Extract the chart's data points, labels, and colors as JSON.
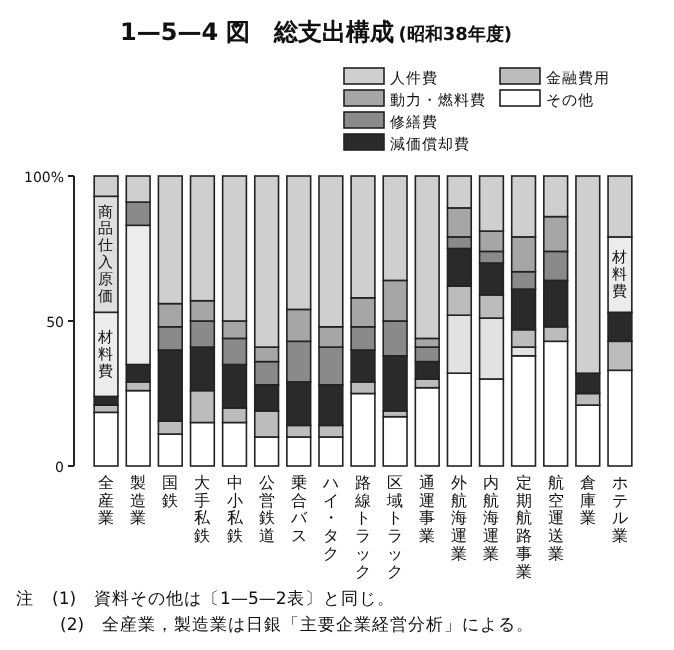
{
  "chart_data": {
    "type": "bar",
    "title": "1—5—4 図　総支出構成",
    "subtitle": "(昭和38年度)",
    "categories": [
      "全産業",
      "製造業",
      "国鉄",
      "大手私鉄",
      "中小私鉄",
      "公営鉄道",
      "乗合バス",
      "ハイ・タク",
      "路線トラック",
      "区域トラック",
      "通運事業",
      "外航海運業",
      "内航海運業",
      "定期航路事業",
      "航空運送業",
      "倉庫業",
      "ホテル業"
    ],
    "stacked": true,
    "series": [
      {
        "name": "その他",
        "color": "#ffffff",
        "values": [
          18.5,
          26,
          11,
          15,
          15,
          10,
          10,
          10,
          25,
          17,
          27,
          32,
          30,
          38,
          43,
          21,
          33
        ]
      },
      {
        "color": "#e2e2e2",
        "values": [
          null,
          null,
          null,
          null,
          null,
          null,
          null,
          null,
          null,
          null,
          null,
          20,
          21,
          3,
          null,
          null,
          null
        ]
      },
      {
        "name": "金融費用",
        "color": "#bcbcbc",
        "values": [
          2.5,
          3,
          4.5,
          11,
          5,
          9,
          4,
          4,
          4,
          2,
          3,
          10,
          8,
          6,
          5,
          4,
          10
        ]
      },
      {
        "name": "減価償却費",
        "color": "#2a2a2a",
        "values": [
          3,
          6,
          24.5,
          15,
          15,
          9,
          15,
          14,
          11,
          19,
          6,
          13,
          11,
          14,
          16,
          7,
          10
        ]
      },
      {
        "color": "#ececec",
        "values": [
          29,
          48,
          null,
          null,
          null,
          null,
          null,
          null,
          null,
          null,
          null,
          null,
          null,
          null,
          null,
          null,
          26
        ],
        "value_labels": [
          "材料費",
          null,
          null,
          null,
          null,
          null,
          null,
          null,
          null,
          null,
          null,
          null,
          null,
          null,
          null,
          null,
          "材料費"
        ]
      },
      {
        "color": "#dedede",
        "values": [
          40,
          null,
          null,
          null,
          null,
          null,
          null,
          null,
          null,
          null,
          null,
          null,
          null,
          null,
          null,
          null,
          null
        ],
        "value_labels": [
          "商品仕入原価",
          null,
          null,
          null,
          null,
          null,
          null,
          null,
          null,
          null,
          null,
          null,
          null,
          null,
          null,
          null,
          null
        ]
      },
      {
        "name": "修繕費",
        "color": "#8a8a8a",
        "values": [
          null,
          8,
          8,
          9,
          9,
          8,
          14,
          13,
          8,
          12,
          5,
          4,
          4,
          6,
          10,
          null,
          null
        ]
      },
      {
        "name": "動力・燃料費",
        "color": "#a6a6a6",
        "values": [
          null,
          null,
          8,
          7,
          6,
          5,
          11,
          7,
          10,
          14,
          3,
          10,
          7,
          12,
          12,
          null,
          null
        ]
      },
      {
        "name": "人件費",
        "color": "#cfcfcf",
        "values": [
          7,
          9,
          44,
          43,
          50,
          59,
          46,
          52,
          42,
          36,
          56,
          11,
          19,
          21,
          14,
          68,
          21
        ]
      }
    ],
    "ylim": [
      0,
      100
    ],
    "yticks": [
      0,
      50,
      {
        "value": 100,
        "label": "100%"
      }
    ],
    "legend": "top right",
    "annotations": [
      "注　(1)　資料その他は〔1—5—2表〕と同じ。",
      "(2)　全産業，製造業は日銀「主要企業経営分析」による。"
    ]
  }
}
